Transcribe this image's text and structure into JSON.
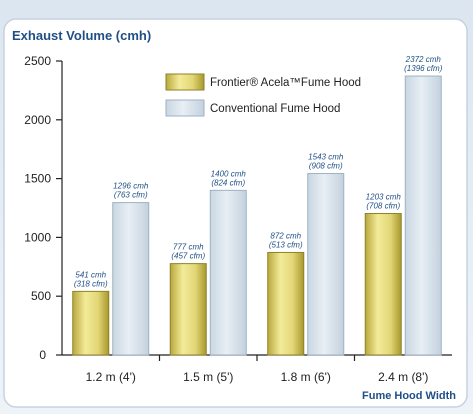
{
  "chart_data": {
    "type": "bar",
    "title": "Exhaust Volume (cmh)",
    "xlabel": "Fume Hood Width",
    "ylabel": "",
    "ylim": [
      0,
      2500
    ],
    "yticks": [
      0,
      500,
      1000,
      1500,
      2000,
      2500
    ],
    "categories": [
      "1.2 m (4')",
      "1.5 m (5')",
      "1.8 m (6')",
      "2.4 m (8')"
    ],
    "series": [
      {
        "name": "Frontier® Acela™Fume Hood",
        "values": [
          541,
          777,
          872,
          1203
        ],
        "labels": [
          [
            "541 cmh",
            "(318 cfm)"
          ],
          [
            "777 cmh",
            "(457 cfm)"
          ],
          [
            "872 cmh",
            "(513 cfm)"
          ],
          [
            "1203 cmh",
            "(708 cfm)"
          ]
        ],
        "color": "#d8cc5a"
      },
      {
        "name": "Conventional Fume Hood",
        "values": [
          1296,
          1400,
          1543,
          2372
        ],
        "labels": [
          [
            "1296 cmh",
            "(763 cfm)"
          ],
          [
            "1400 cmh",
            "(824 cfm)"
          ],
          [
            "1543 cmh",
            "(908 cfm)"
          ],
          [
            "2372 cmh",
            "(1396 cfm)"
          ]
        ],
        "color": "#dbe6ee"
      }
    ],
    "legend": "top-center",
    "grid": false
  }
}
